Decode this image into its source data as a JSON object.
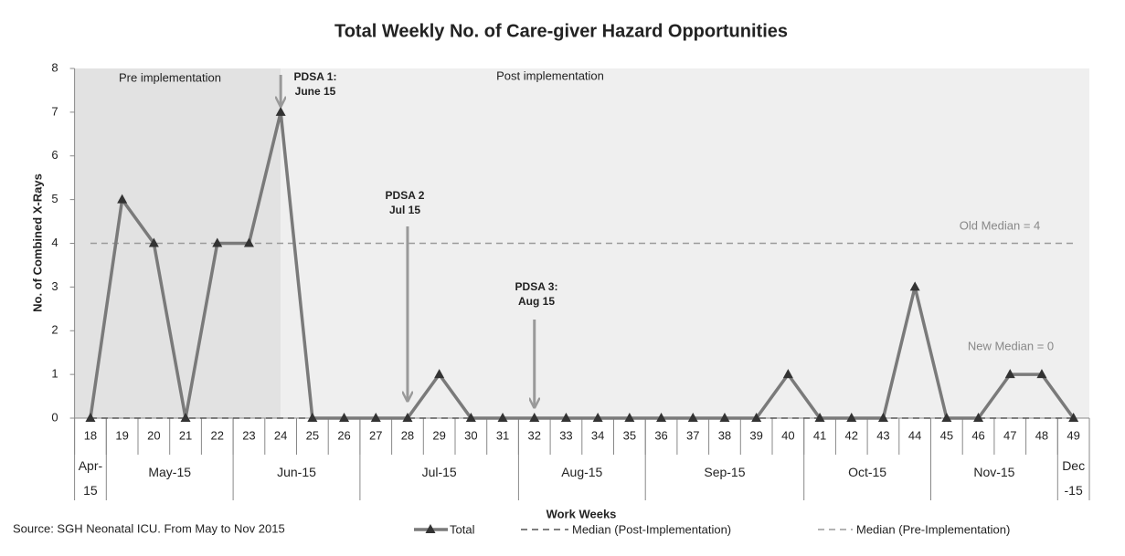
{
  "chart_data": {
    "type": "line",
    "title": "Total Weekly No. of Care-giver Hazard Opportunities",
    "y_label": "No. of Combined X-Rays",
    "x_label": "Work Weeks",
    "source": "Source: SGH Neonatal ICU. From May to Nov 2015",
    "categories": [
      "18",
      "19",
      "20",
      "21",
      "22",
      "23",
      "24",
      "25",
      "26",
      "27",
      "28",
      "29",
      "30",
      "31",
      "32",
      "33",
      "34",
      "35",
      "36",
      "37",
      "38",
      "39",
      "40",
      "41",
      "42",
      "43",
      "44",
      "45",
      "46",
      "47",
      "48",
      "49"
    ],
    "series": [
      {
        "name": "Total",
        "color": "#7a7a7a",
        "marker_color": "#333333",
        "values": [
          0,
          5,
          4,
          0,
          4,
          4,
          7,
          0,
          0,
          0,
          0,
          1,
          0,
          0,
          0,
          0,
          0,
          0,
          0,
          0,
          0,
          0,
          1,
          0,
          0,
          0,
          3,
          0,
          0,
          1,
          1,
          0
        ]
      }
    ],
    "medians": [
      {
        "name": "Median (Post-Implementation)",
        "value": 0,
        "color": "#555555",
        "label": "New Median = 0"
      },
      {
        "name": "Median (Pre-Implementation)",
        "value": 4,
        "color": "#9a9a9a",
        "label": "Old Median = 4"
      }
    ],
    "x_groups": [
      {
        "label": "Apr-15",
        "from": "18",
        "to": "18"
      },
      {
        "label": "May-15",
        "from": "19",
        "to": "22"
      },
      {
        "label": "Jun-15",
        "from": "23",
        "to": "26"
      },
      {
        "label": "Jul-15",
        "from": "27",
        "to": "31"
      },
      {
        "label": "Aug-15",
        "from": "32",
        "to": "35"
      },
      {
        "label": "Sep-15",
        "from": "36",
        "to": "40"
      },
      {
        "label": "Oct-15",
        "from": "41",
        "to": "44"
      },
      {
        "label": "Nov-15",
        "from": "45",
        "to": "48"
      },
      {
        "label": "Dec-15",
        "from": "49",
        "to": "49"
      }
    ],
    "regions": [
      {
        "label": "Pre implementation",
        "from": "18",
        "to": "24",
        "color": "#e2e2e2"
      },
      {
        "label": "Post implementation",
        "from": "24",
        "to": "49",
        "color": "#efefef"
      }
    ],
    "annotations": [
      {
        "lines": [
          "PDSA 1:",
          "June 15"
        ],
        "at": "24"
      },
      {
        "lines": [
          "PDSA 2",
          "Jul 15"
        ],
        "at": "28"
      },
      {
        "lines": [
          "PDSA 3:",
          "Aug 15"
        ],
        "at": "32"
      }
    ],
    "ylim": [
      0,
      8
    ],
    "yticks": [
      0,
      1,
      2,
      3,
      4,
      5,
      6,
      7,
      8
    ],
    "grid": false
  }
}
